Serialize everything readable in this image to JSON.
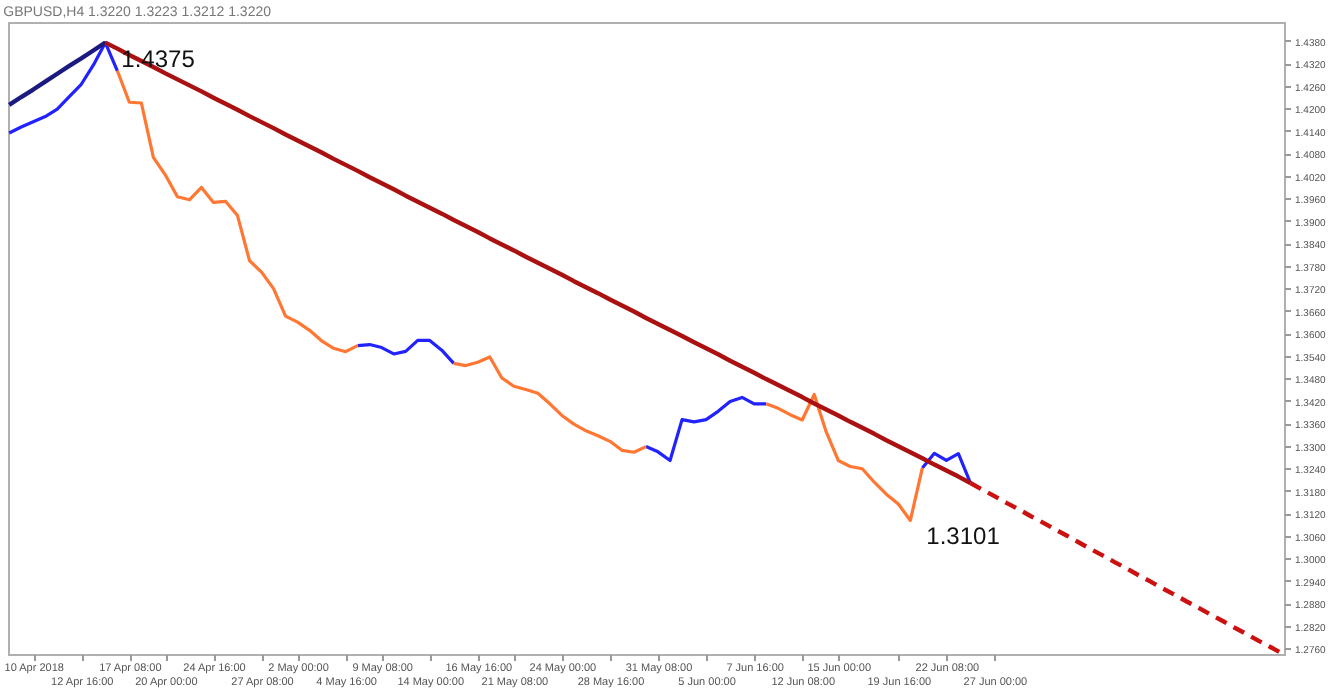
{
  "chart_data": {
    "type": "line",
    "title": "GBPUSD,H4  1.3220 1.3223 1.3212 1.3220",
    "categories": [
      null,
      null,
      "10 Apr 2018",
      null,
      null,
      null,
      "12 Apr 16:00",
      null,
      null,
      null,
      "17 Apr 08:00",
      null,
      null,
      "20 Apr 00:00",
      null,
      null,
      null,
      "24 Apr 16:00",
      null,
      null,
      null,
      "27 Apr 08:00",
      null,
      null,
      "2 May 00:00",
      null,
      null,
      null,
      "4 May 16:00",
      null,
      null,
      "9 May 08:00",
      null,
      null,
      null,
      "14 May 00:00",
      null,
      null,
      null,
      "16 May 16:00",
      null,
      null,
      "21 May 08:00",
      null,
      null,
      null,
      "24 May 00:00",
      null,
      null,
      null,
      "28 May 16:00",
      null,
      null,
      null,
      "31 May 08:00",
      null,
      null,
      null,
      "5 Jun 00:00",
      null,
      null,
      null,
      "7 Jun 16:00",
      null,
      null,
      null,
      "12 Jun 08:00",
      null,
      null,
      "15 Jun 00:00",
      null,
      null,
      null,
      null,
      "19 Jun 16:00",
      null,
      null,
      null,
      "22 Jun 08:00",
      null,
      null,
      null,
      "27 Jun 00:00",
      null,
      null,
      null,
      null,
      null,
      null,
      null,
      null,
      null,
      null,
      null,
      null,
      null,
      null,
      null,
      null,
      null,
      null,
      null,
      null,
      null,
      null,
      null,
      null
    ],
    "ylim": [
      1.2745,
      1.443
    ],
    "yticks": [
      {
        "value": 1.276,
        "label": "1.2760"
      },
      {
        "value": 1.282,
        "label": "1.2820"
      },
      {
        "value": 1.288,
        "label": "1.2880"
      },
      {
        "value": 1.294,
        "label": "1.2940"
      },
      {
        "value": 1.3,
        "label": "1.3000"
      },
      {
        "value": 1.306,
        "label": "1.3060"
      },
      {
        "value": 1.312,
        "label": "1.3120"
      },
      {
        "value": 1.318,
        "label": "1.3180"
      },
      {
        "value": 1.324,
        "label": "1.3240"
      },
      {
        "value": 1.33,
        "label": "1.3300"
      },
      {
        "value": 1.336,
        "label": "1.3360"
      },
      {
        "value": 1.342,
        "label": "1.3420"
      },
      {
        "value": 1.348,
        "label": "1.3480"
      },
      {
        "value": 1.354,
        "label": "1.3540"
      },
      {
        "value": 1.36,
        "label": "1.3600"
      },
      {
        "value": 1.366,
        "label": "1.3660"
      },
      {
        "value": 1.372,
        "label": "1.3720"
      },
      {
        "value": 1.378,
        "label": "1.3780"
      },
      {
        "value": 1.384,
        "label": "1.3840"
      },
      {
        "value": 1.39,
        "label": "1.3900"
      },
      {
        "value": 1.396,
        "label": "1.3960"
      },
      {
        "value": 1.402,
        "label": "1.4020"
      },
      {
        "value": 1.408,
        "label": "1.4080"
      },
      {
        "value": 1.414,
        "label": "1.4140"
      },
      {
        "value": 1.42,
        "label": "1.4200"
      },
      {
        "value": 1.426,
        "label": "1.4260"
      },
      {
        "value": 1.432,
        "label": "1.4320"
      },
      {
        "value": 1.438,
        "label": "1.4380"
      }
    ],
    "series": [
      {
        "color": "#2222ff",
        "values": [
          1.4134,
          1.415,
          1.4164,
          1.4178,
          1.4198,
          1.4231,
          1.4264,
          1.4315,
          1.4375,
          1.43,
          null,
          null,
          null,
          null,
          null,
          null,
          null,
          null,
          null,
          null,
          null,
          null,
          null,
          null,
          null,
          null,
          null,
          null,
          null,
          1.3567,
          1.357,
          1.3562,
          1.3545,
          1.3552,
          1.3581,
          1.3581,
          1.3555,
          1.352,
          null,
          null,
          null,
          null,
          null,
          null,
          null,
          null,
          null,
          null,
          null,
          null,
          null,
          null,
          null,
          1.3298,
          1.3284,
          1.3261,
          1.337,
          1.3364,
          1.337,
          1.3392,
          1.3418,
          1.3429,
          1.3412,
          1.3412,
          null,
          null,
          null,
          null,
          null,
          null,
          null,
          null,
          null,
          null,
          null,
          null,
          1.3241,
          1.328,
          1.3261,
          1.3279,
          1.3201,
          null,
          null,
          null,
          null,
          null,
          null,
          null,
          null,
          null,
          null,
          null,
          null,
          null,
          null,
          null,
          null,
          null,
          null,
          null,
          null,
          null,
          null,
          null,
          null,
          null,
          null
        ]
      },
      {
        "color": "#ff7733",
        "values": [
          null,
          null,
          null,
          null,
          null,
          null,
          null,
          null,
          null,
          1.43,
          1.4216,
          1.4214,
          1.4069,
          1.4022,
          1.3964,
          1.3956,
          1.3989,
          1.3949,
          1.3952,
          1.3914,
          1.3794,
          1.3763,
          1.3719,
          1.3646,
          1.363,
          1.3608,
          1.358,
          1.356,
          1.3551,
          1.3567,
          null,
          null,
          null,
          null,
          null,
          null,
          null,
          1.352,
          1.3514,
          1.3523,
          1.3537,
          1.3481,
          1.3459,
          1.345,
          1.344,
          1.3412,
          1.3381,
          1.3358,
          1.334,
          1.3327,
          1.3312,
          1.3288,
          1.3283,
          1.3298,
          null,
          null,
          null,
          null,
          null,
          null,
          null,
          null,
          null,
          1.3412,
          1.34,
          1.3383,
          1.3369,
          1.3437,
          1.3337,
          1.3261,
          1.3245,
          1.3239,
          1.3203,
          1.3171,
          1.3145,
          1.3101,
          1.3241,
          null,
          null,
          null,
          null,
          null,
          null,
          null,
          null,
          null,
          null,
          null,
          null,
          null,
          null,
          null,
          null,
          null,
          null,
          null,
          null,
          null,
          null,
          null,
          null,
          null,
          null,
          null,
          null,
          null,
          null
        ]
      },
      {
        "color": "#1a1a80",
        "values": [
          1.4209,
          1.423,
          1.425,
          1.4271,
          1.4292,
          1.4313,
          1.4333,
          1.4354,
          1.4375,
          null,
          null,
          null,
          null,
          null,
          null,
          null,
          null,
          null,
          null,
          null,
          null,
          null,
          null,
          null,
          null,
          null,
          null,
          null,
          null,
          null,
          null,
          null,
          null,
          null,
          null,
          null,
          null,
          null,
          null,
          null,
          null,
          null,
          null,
          null,
          null,
          null,
          null,
          null,
          null,
          null,
          null,
          null,
          null,
          null,
          null,
          null,
          null,
          null,
          null,
          null,
          null,
          null,
          null,
          null,
          null,
          null,
          null,
          null,
          null,
          null,
          null,
          null,
          null,
          null,
          null,
          null,
          null,
          null,
          null,
          null,
          null,
          null,
          null,
          null,
          null,
          null,
          null,
          null,
          null,
          null,
          null,
          null,
          null,
          null,
          null,
          null,
          null,
          null,
          null,
          null,
          null,
          null,
          null,
          null,
          null,
          null,
          null
        ]
      },
      {
        "color": "#aa1111",
        "values": [
          null,
          null,
          null,
          null,
          null,
          null,
          null,
          null,
          1.4375,
          1.4359,
          1.4342,
          1.4326,
          1.431,
          1.4293,
          1.4277,
          1.4261,
          1.4245,
          1.4228,
          1.4212,
          1.4196,
          1.4179,
          1.4163,
          1.4147,
          1.413,
          1.4114,
          1.4098,
          1.4082,
          1.4065,
          1.4049,
          1.4033,
          1.4016,
          1.4,
          1.3984,
          1.3967,
          1.3951,
          1.3935,
          1.3919,
          1.3902,
          1.3886,
          1.387,
          1.3853,
          1.3837,
          1.3821,
          1.3804,
          1.3788,
          1.3772,
          1.3756,
          1.3739,
          1.3723,
          1.3707,
          1.369,
          1.3674,
          1.3658,
          1.3641,
          1.3625,
          1.3609,
          1.3593,
          1.3576,
          1.356,
          1.3544,
          1.3527,
          1.3511,
          1.3495,
          1.3478,
          1.3462,
          1.3446,
          1.343,
          1.3413,
          1.3397,
          1.3381,
          1.3364,
          1.3348,
          1.3332,
          1.3315,
          1.3299,
          1.3283,
          1.3267,
          1.325,
          1.3234,
          1.3218,
          1.3201,
          null,
          null,
          null,
          null,
          null,
          null,
          null,
          null,
          null,
          null,
          null,
          null,
          null,
          null,
          null,
          null,
          null,
          null,
          null,
          null,
          null,
          null,
          null,
          null,
          null,
          null
        ]
      },
      {
        "color": "#cc1111",
        "line_style": "dashed",
        "values": [
          null,
          null,
          null,
          null,
          null,
          null,
          null,
          null,
          null,
          null,
          null,
          null,
          null,
          null,
          null,
          null,
          null,
          null,
          null,
          null,
          null,
          null,
          null,
          null,
          null,
          null,
          null,
          null,
          null,
          null,
          null,
          null,
          null,
          null,
          null,
          null,
          null,
          null,
          null,
          null,
          null,
          null,
          null,
          null,
          null,
          null,
          null,
          null,
          null,
          null,
          null,
          null,
          null,
          null,
          null,
          null,
          null,
          null,
          null,
          null,
          null,
          null,
          null,
          null,
          null,
          null,
          null,
          null,
          null,
          null,
          null,
          null,
          null,
          null,
          null,
          null,
          null,
          null,
          null,
          null,
          1.3201,
          1.3183,
          1.3166,
          1.3148,
          1.3131,
          1.3113,
          1.3096,
          1.3078,
          1.3061,
          1.3043,
          1.3025,
          1.3008,
          1.299,
          1.2973,
          1.2955,
          1.2938,
          1.292,
          1.2903,
          1.2885,
          1.2868,
          1.285,
          1.2833,
          1.2815,
          1.2798,
          1.278,
          1.2763,
          1.2745
        ]
      }
    ],
    "annotations": [
      "1.4375",
      "1.3101"
    ]
  }
}
